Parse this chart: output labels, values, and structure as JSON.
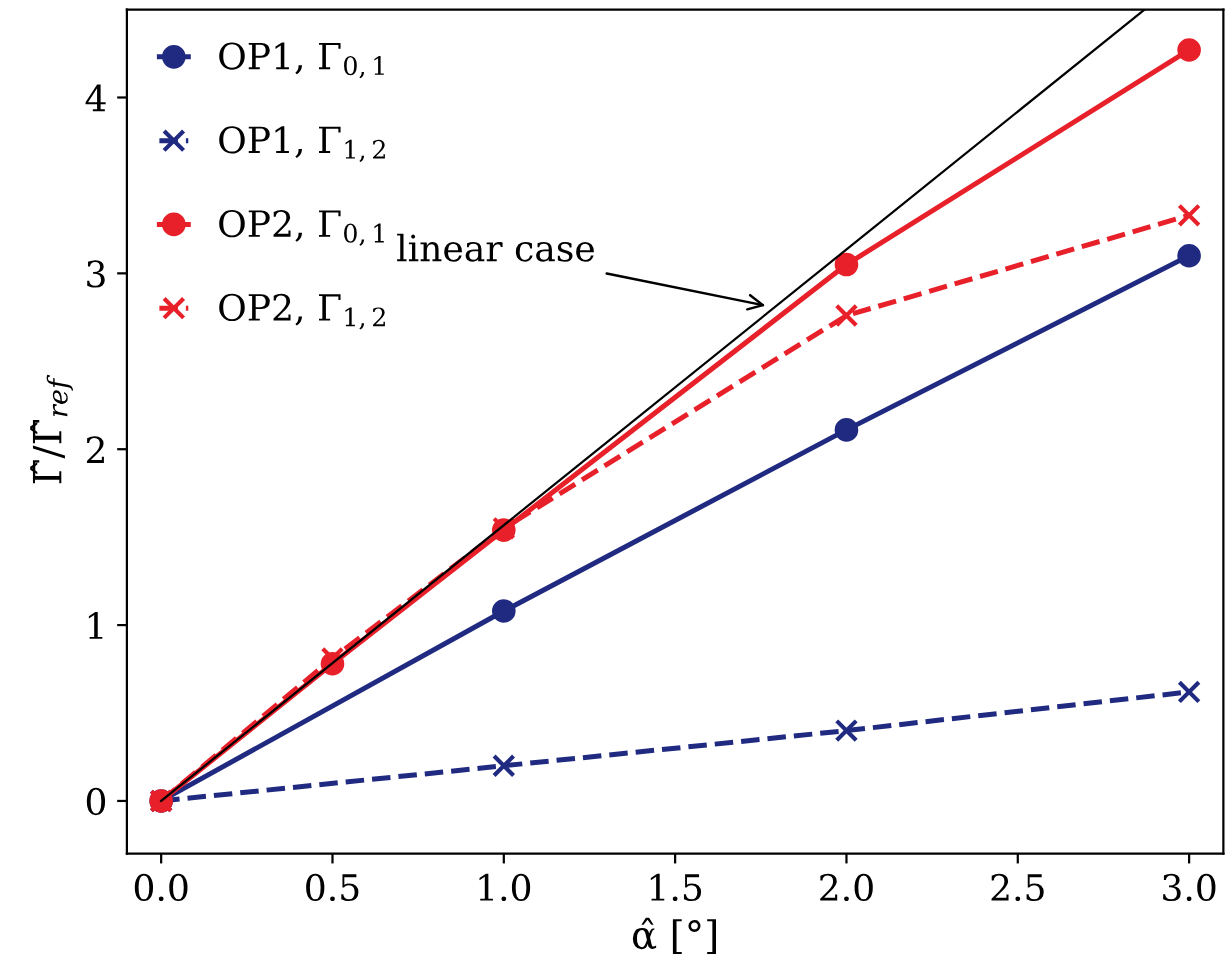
{
  "chart_data": {
    "type": "line",
    "xlabel": "α̂ [°]",
    "ylabel": "Γ̂/Γ̂$_{ref}$",
    "xlim": [
      -0.1,
      3.1
    ],
    "xticks": [
      {
        "value": 0,
        "label": "0.0"
      },
      {
        "value": 0.5,
        "label": "0.5"
      },
      {
        "value": 1,
        "label": "1.0"
      },
      {
        "value": 1.5,
        "label": "1.5"
      },
      {
        "value": 2,
        "label": "2.0"
      },
      {
        "value": 2.5,
        "label": "2.5"
      },
      {
        "value": 3,
        "label": "3.0"
      }
    ],
    "ylim": [
      -0.3,
      4.5
    ],
    "yticks": [
      0,
      1,
      2,
      3,
      4
    ],
    "grid": false,
    "legend": "top left",
    "series": [
      {
        "name": "OP1, Γ$_{0,1}$",
        "color": "#1f2a80",
        "x": [
          0,
          1,
          2,
          3
        ],
        "values": [
          0,
          1.08,
          2.11,
          3.1
        ],
        "marker": "circle",
        "line_style": "solid"
      },
      {
        "name": "OP1, Γ$_{1,2}$",
        "color": "#1f2a80",
        "x": [
          0,
          1,
          2,
          3
        ],
        "values": [
          0,
          0.2,
          0.4,
          0.62
        ],
        "marker": "cross",
        "line_style": "dashed"
      },
      {
        "name": "OP2, Γ$_{0,1}$",
        "color": "#e8202a",
        "x": [
          0,
          0.5,
          1,
          2,
          3
        ],
        "values": [
          0,
          0.78,
          1.54,
          3.05,
          4.27
        ],
        "marker": "circle",
        "line_style": "solid"
      },
      {
        "name": "OP2, Γ$_{1,2}$",
        "color": "#e8202a",
        "x": [
          0,
          0.5,
          1,
          2,
          3
        ],
        "values": [
          0,
          0.81,
          1.55,
          2.76,
          3.33
        ],
        "marker": "cross",
        "line_style": "dashed"
      },
      {
        "color": "#000000",
        "x": [
          0,
          2.87
        ],
        "values": [
          0,
          4.5
        ],
        "marker": "none",
        "line_style": "solid"
      }
    ],
    "annotations": [
      {
        "text": "linear case",
        "x": 1.78,
        "y": 2.81
      }
    ]
  }
}
